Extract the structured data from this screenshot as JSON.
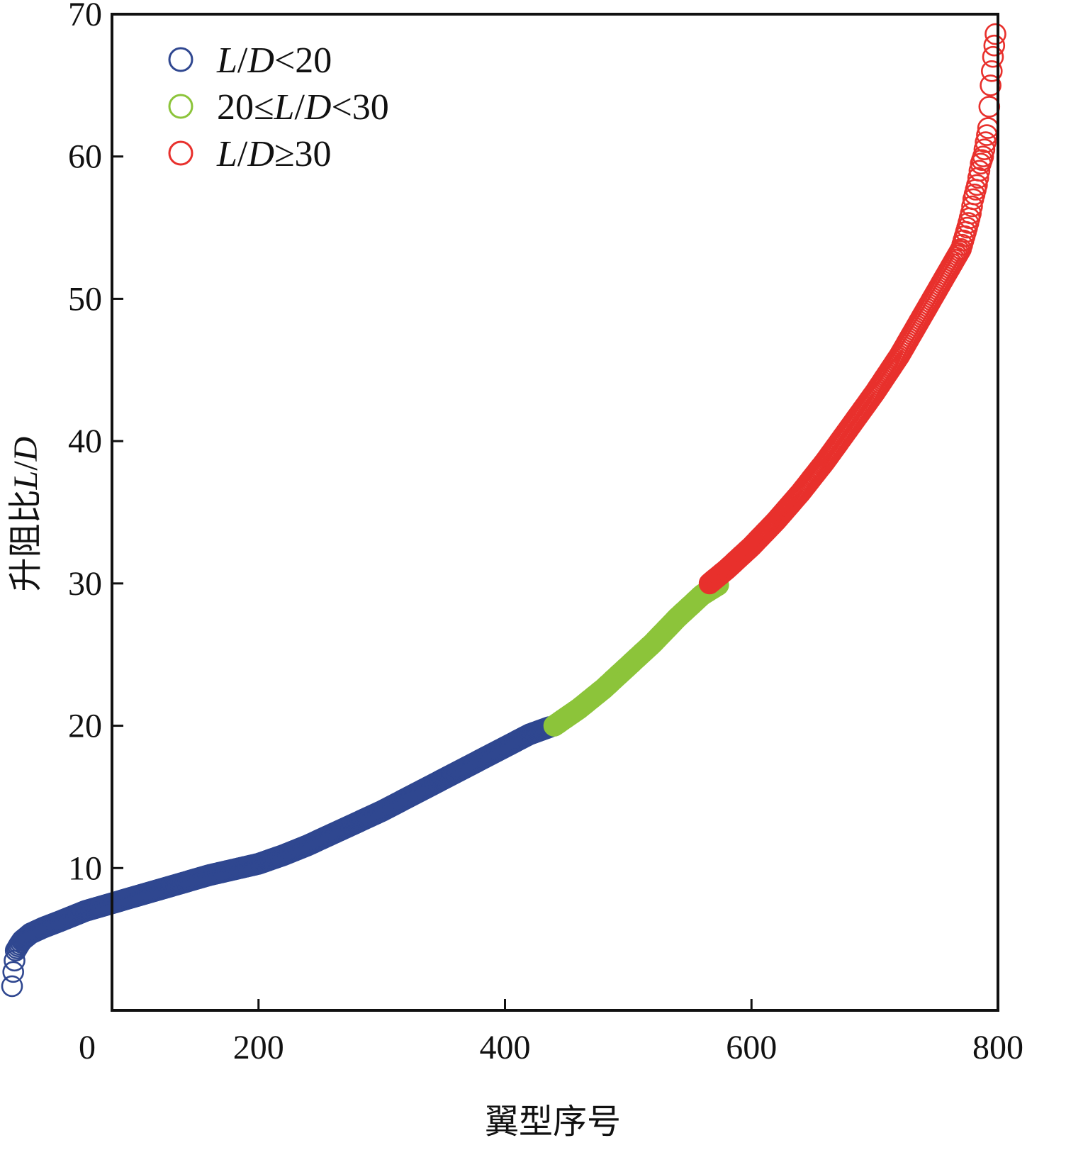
{
  "chart_data": {
    "type": "scatter",
    "xlabel": "翼型序号",
    "ylabel": {
      "prefix": "升阻比",
      "italic": "L",
      "slash": "/",
      "italic2": "D"
    },
    "xlim": [
      0,
      800
    ],
    "ylim": [
      0,
      70
    ],
    "x_ticks": [
      0,
      200,
      400,
      600,
      800
    ],
    "y_ticks": [
      10,
      20,
      30,
      40,
      50,
      60,
      70
    ],
    "grid": false,
    "legend_position": "top-left",
    "marker": "open-circle",
    "legend": [
      {
        "parts": [
          {
            "t": "L",
            "i": true
          },
          {
            "t": "/",
            "i": false
          },
          {
            "t": "D",
            "i": true
          },
          {
            "t": "<20",
            "i": false
          }
        ],
        "color": "#2f4790"
      },
      {
        "parts": [
          {
            "t": "20≤",
            "i": false
          },
          {
            "t": "L",
            "i": true
          },
          {
            "t": "/",
            "i": false
          },
          {
            "t": "D",
            "i": true
          },
          {
            "t": "<30",
            "i": false
          }
        ],
        "color": "#8cc43a"
      },
      {
        "parts": [
          {
            "t": "L",
            "i": true
          },
          {
            "t": "/",
            "i": false
          },
          {
            "t": "D",
            "i": true
          },
          {
            "t": "≥30",
            "i": false
          }
        ],
        "color": "#e8302c"
      }
    ],
    "series": [
      {
        "color": "#2f4790",
        "points": [
          [
            0,
            1.7
          ],
          [
            1,
            2.7
          ],
          [
            2,
            3.5
          ],
          [
            3,
            4.2
          ],
          [
            5,
            4.5
          ],
          [
            8,
            4.9
          ],
          [
            15,
            5.4
          ],
          [
            25,
            5.8
          ],
          [
            40,
            6.3
          ],
          [
            60,
            7.0
          ],
          [
            80,
            7.5
          ],
          [
            100,
            8.0
          ],
          [
            120,
            8.5
          ],
          [
            140,
            9.0
          ],
          [
            160,
            9.5
          ],
          [
            180,
            9.9
          ],
          [
            200,
            10.3
          ],
          [
            220,
            10.9
          ],
          [
            240,
            11.6
          ],
          [
            260,
            12.4
          ],
          [
            280,
            13.2
          ],
          [
            300,
            14.0
          ],
          [
            320,
            14.9
          ],
          [
            340,
            15.8
          ],
          [
            360,
            16.7
          ],
          [
            380,
            17.6
          ],
          [
            400,
            18.5
          ],
          [
            420,
            19.4
          ],
          [
            436,
            19.9
          ]
        ]
      },
      {
        "color": "#8cc43a",
        "points": [
          [
            440,
            20.0
          ],
          [
            460,
            21.2
          ],
          [
            480,
            22.6
          ],
          [
            500,
            24.2
          ],
          [
            520,
            25.8
          ],
          [
            540,
            27.6
          ],
          [
            560,
            29.2
          ],
          [
            573,
            29.9
          ]
        ]
      },
      {
        "color": "#e8302c",
        "points": [
          [
            566,
            30.0
          ],
          [
            580,
            31.0
          ],
          [
            600,
            32.6
          ],
          [
            620,
            34.4
          ],
          [
            640,
            36.4
          ],
          [
            660,
            38.6
          ],
          [
            680,
            41.0
          ],
          [
            700,
            43.4
          ],
          [
            720,
            46.0
          ],
          [
            740,
            49.0
          ],
          [
            760,
            52.0
          ],
          [
            770,
            53.5
          ],
          [
            775,
            55.0
          ],
          [
            778,
            56.0
          ],
          [
            780,
            57.0
          ],
          [
            783,
            58.0
          ],
          [
            786,
            59.5
          ],
          [
            788,
            60.0
          ],
          [
            790,
            61.0
          ],
          [
            792,
            62.0
          ],
          [
            794,
            65.0
          ],
          [
            795,
            66.0
          ],
          [
            796,
            67.0
          ],
          [
            797,
            67.8
          ],
          [
            798,
            68.6
          ]
        ]
      }
    ]
  }
}
